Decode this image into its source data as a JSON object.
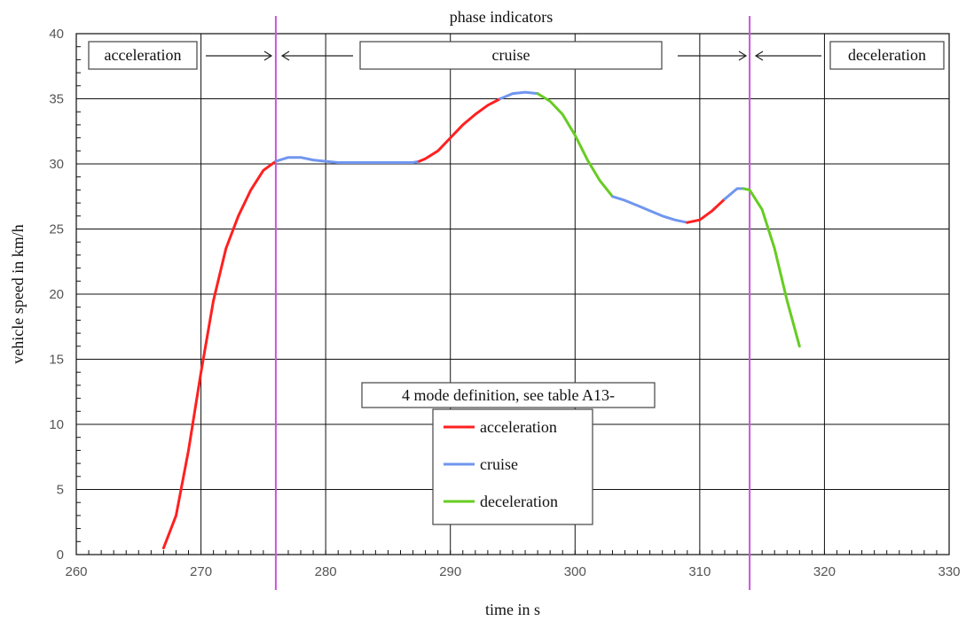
{
  "chart_data": {
    "type": "line",
    "title": "phase indicators",
    "xlabel": "time in s",
    "ylabel": "vehicle speed in km/h",
    "xlim": [
      260,
      330
    ],
    "ylim": [
      0,
      40
    ],
    "x_ticks": [
      "260",
      "270",
      "280",
      "290",
      "300",
      "310",
      "320",
      "330"
    ],
    "y_ticks": [
      "0",
      "5",
      "10",
      "15",
      "20",
      "25",
      "30",
      "35",
      "40"
    ],
    "grid": true,
    "phase_lines": [
      276,
      314
    ],
    "phase_labels": [
      "acceleration",
      "cruise",
      "deceleration"
    ],
    "legend": {
      "title": "4 mode definition, see table A13-",
      "entries": [
        "acceleration",
        "cruise",
        "deceleration"
      ],
      "placement": "lower-center"
    },
    "colors": {
      "acceleration": "#ff2020",
      "cruise": "#7096ee",
      "deceleration": "#66cc22",
      "phase_line": "#cc55dd"
    },
    "series": [
      {
        "mode": "acceleration",
        "x": [
          267,
          268,
          269,
          270,
          271,
          272,
          273,
          274,
          275,
          276
        ],
        "y": [
          0.5,
          3,
          8,
          14,
          19.5,
          23.5,
          26,
          28,
          29.5,
          30.2
        ]
      },
      {
        "mode": "cruise",
        "x": [
          276,
          277,
          278,
          279,
          280,
          281,
          282,
          283,
          284,
          285,
          286,
          287,
          287.5
        ],
        "y": [
          30.2,
          30.5,
          30.5,
          30.3,
          30.2,
          30.1,
          30.1,
          30.1,
          30.1,
          30.1,
          30.1,
          30.1,
          30.2
        ]
      },
      {
        "mode": "acceleration",
        "x": [
          287.5,
          288,
          289,
          290,
          291,
          292,
          293,
          294
        ],
        "y": [
          30.2,
          30.4,
          31.0,
          32.0,
          33.0,
          33.8,
          34.5,
          35.0
        ]
      },
      {
        "mode": "cruise",
        "x": [
          294,
          295,
          296,
          297
        ],
        "y": [
          35.0,
          35.4,
          35.5,
          35.4
        ]
      },
      {
        "mode": "deceleration",
        "x": [
          297,
          298,
          299,
          300,
          301,
          302,
          303
        ],
        "y": [
          35.4,
          34.8,
          33.8,
          32.2,
          30.3,
          28.7,
          27.5
        ]
      },
      {
        "mode": "cruise",
        "x": [
          303,
          304,
          305,
          306,
          307,
          308,
          309
        ],
        "y": [
          27.5,
          27.2,
          26.8,
          26.4,
          26.0,
          25.7,
          25.5
        ]
      },
      {
        "mode": "acceleration",
        "x": [
          309,
          310,
          311,
          312
        ],
        "y": [
          25.5,
          25.7,
          26.4,
          27.3
        ]
      },
      {
        "mode": "cruise",
        "x": [
          312,
          313,
          313.5
        ],
        "y": [
          27.3,
          28.1,
          28.1
        ]
      },
      {
        "mode": "deceleration",
        "x": [
          313.5,
          314,
          315,
          316,
          317,
          318
        ],
        "y": [
          28.1,
          28.0,
          26.5,
          23.5,
          19.5,
          16.0
        ]
      }
    ]
  }
}
